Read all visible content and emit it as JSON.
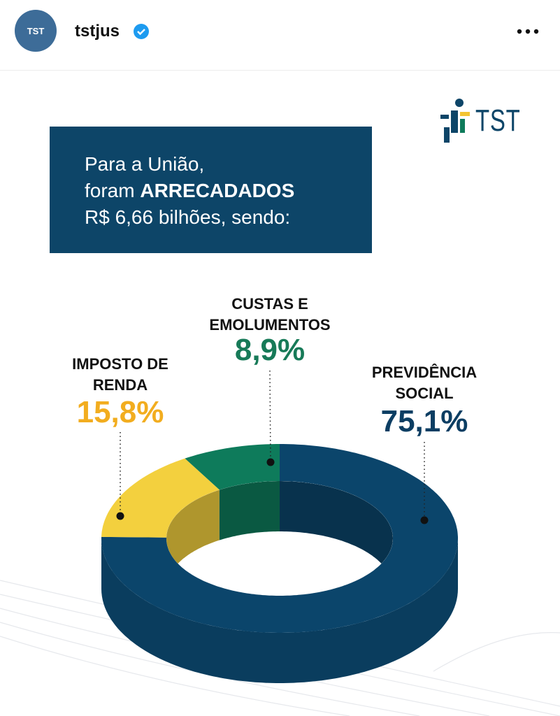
{
  "post": {
    "avatar_text": "TST",
    "username": "tstjus"
  },
  "graphic": {
    "logo_text": "TST",
    "headline": {
      "line1": "Para a União,",
      "line2_prefix": "foram",
      "line2_bold": "ARRECADADOS",
      "line3": "R$ 6,66 bilhões, sendo:"
    }
  },
  "chart_data": {
    "type": "pie",
    "style": "donut-3d",
    "categories": [
      "PREVIDÊNCIA SOCIAL",
      "IMPOSTO DE RENDA",
      "CUSTAS E EMOLUMENTOS"
    ],
    "values": [
      75.1,
      15.8,
      8.9
    ],
    "value_labels": [
      "75,1%",
      "15,8%",
      "8,9%"
    ],
    "colors": [
      "#0b456b",
      "#f3d03e",
      "#0e7b5b"
    ],
    "label_colors": [
      "#0c3e63",
      "#f2ad1f",
      "#177a58"
    ]
  }
}
